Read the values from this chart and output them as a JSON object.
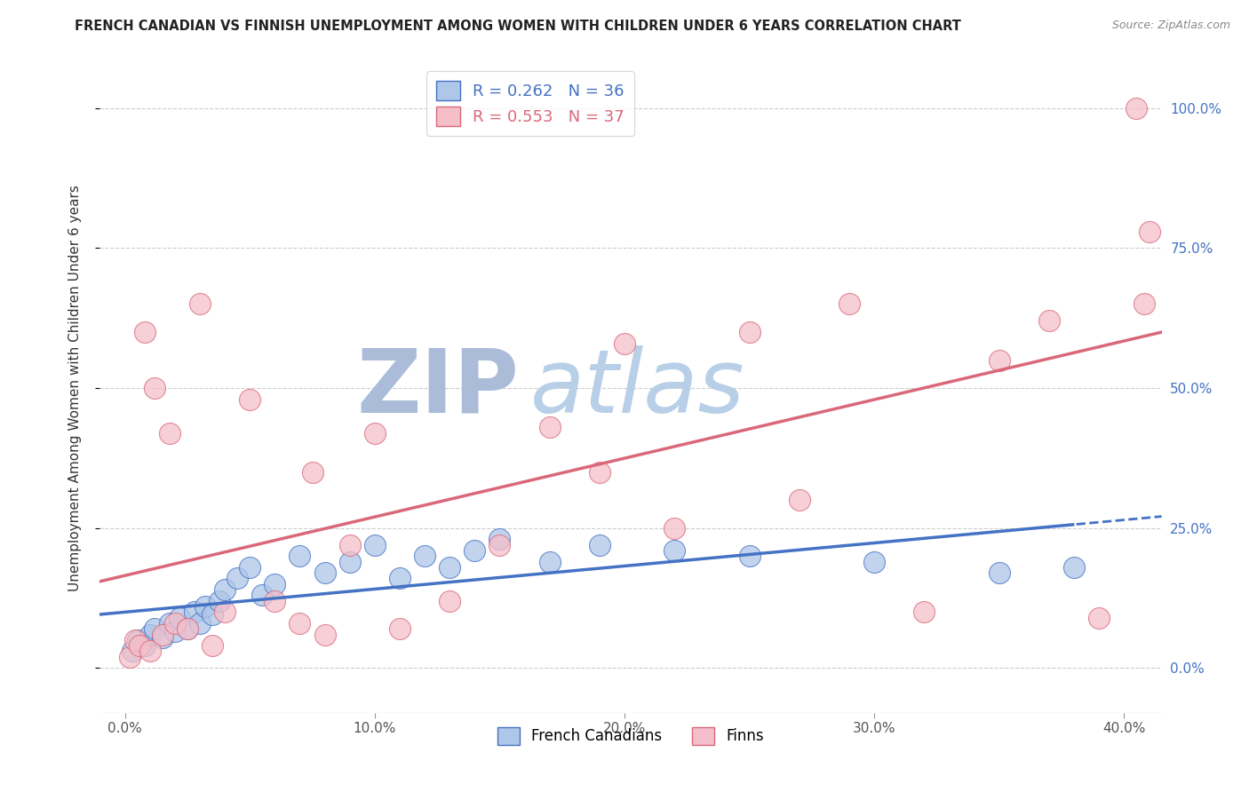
{
  "title": "FRENCH CANADIAN VS FINNISH UNEMPLOYMENT AMONG WOMEN WITH CHILDREN UNDER 6 YEARS CORRELATION CHART",
  "source": "Source: ZipAtlas.com",
  "ylabel": "Unemployment Among Women with Children Under 6 years",
  "xlim": [
    -1.0,
    41.5
  ],
  "ylim": [
    -8,
    108
  ],
  "blue_R": 0.262,
  "blue_N": 36,
  "pink_R": 0.553,
  "pink_N": 37,
  "blue_label": "French Canadians",
  "pink_label": "Finns",
  "blue_fill_color": "#aec6e8",
  "pink_fill_color": "#f5bfc9",
  "blue_line_color": "#4472c4",
  "pink_line_color": "#d9687a",
  "watermark_zip_color": "#b8cde8",
  "watermark_atlas_color": "#c8d8f0",
  "background_color": "#ffffff",
  "grid_color": "#cccccc",
  "title_color": "#222222",
  "source_color": "#888888",
  "tick_color": "#555555",
  "blue_scatter_x": [
    0.3,
    0.5,
    0.8,
    1.0,
    1.2,
    1.5,
    1.8,
    2.0,
    2.2,
    2.5,
    2.8,
    3.0,
    3.2,
    3.5,
    3.8,
    4.0,
    4.5,
    5.0,
    5.5,
    6.0,
    7.0,
    8.0,
    9.0,
    10.0,
    11.0,
    12.0,
    13.0,
    14.0,
    15.0,
    17.0,
    19.0,
    22.0,
    25.0,
    30.0,
    35.0,
    38.0
  ],
  "blue_scatter_y": [
    3.0,
    5.0,
    4.0,
    6.0,
    7.0,
    5.5,
    8.0,
    6.5,
    9.0,
    7.0,
    10.0,
    8.0,
    11.0,
    9.5,
    12.0,
    14.0,
    16.0,
    18.0,
    13.0,
    15.0,
    20.0,
    17.0,
    19.0,
    22.0,
    16.0,
    20.0,
    18.0,
    21.0,
    23.0,
    19.0,
    22.0,
    21.0,
    20.0,
    19.0,
    17.0,
    18.0
  ],
  "pink_scatter_x": [
    0.2,
    0.4,
    0.6,
    0.8,
    1.0,
    1.2,
    1.5,
    1.8,
    2.0,
    2.5,
    3.0,
    3.5,
    4.0,
    5.0,
    6.0,
    7.0,
    7.5,
    8.0,
    9.0,
    10.0,
    11.0,
    13.0,
    15.0,
    17.0,
    19.0,
    20.0,
    22.0,
    25.0,
    27.0,
    29.0,
    32.0,
    35.0,
    37.0,
    39.0,
    40.5,
    40.8,
    41.0
  ],
  "pink_scatter_y": [
    2.0,
    5.0,
    4.0,
    60.0,
    3.0,
    50.0,
    6.0,
    42.0,
    8.0,
    7.0,
    65.0,
    4.0,
    10.0,
    48.0,
    12.0,
    8.0,
    35.0,
    6.0,
    22.0,
    42.0,
    7.0,
    12.0,
    22.0,
    43.0,
    35.0,
    58.0,
    25.0,
    60.0,
    30.0,
    65.0,
    10.0,
    55.0,
    62.0,
    9.0,
    100.0,
    65.0,
    78.0
  ]
}
